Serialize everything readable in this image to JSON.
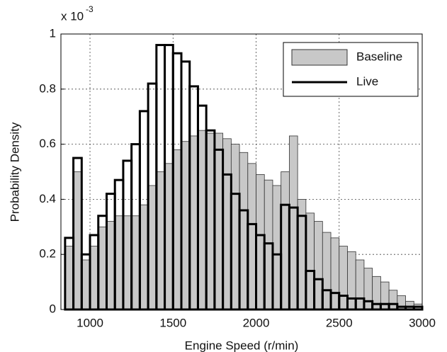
{
  "chart_data": {
    "type": "histogram",
    "x_label": "Engine Speed (r/min)",
    "y_label": "Probability Density",
    "y_multiplier": "x 10",
    "y_multiplier_exponent": "-3",
    "bins": [
      850,
      900,
      950,
      1000,
      1050,
      1100,
      1150,
      1200,
      1250,
      1300,
      1350,
      1400,
      1450,
      1500,
      1550,
      1600,
      1650,
      1700,
      1750,
      1800,
      1850,
      1900,
      1950,
      2000,
      2050,
      2100,
      2150,
      2200,
      2250,
      2300,
      2350,
      2400,
      2450,
      2500,
      2550,
      2600,
      2650,
      2700,
      2750,
      2800,
      2850,
      2900,
      2950,
      3000
    ],
    "series": [
      {
        "name": "Baseline",
        "color": "#c8c8c8",
        "style": "filled",
        "values": [
          0.23,
          0.5,
          0.18,
          0.23,
          0.3,
          0.32,
          0.34,
          0.34,
          0.34,
          0.38,
          0.45,
          0.5,
          0.53,
          0.58,
          0.61,
          0.63,
          0.65,
          0.64,
          0.64,
          0.62,
          0.6,
          0.57,
          0.53,
          0.49,
          0.47,
          0.45,
          0.5,
          0.63,
          0.4,
          0.35,
          0.32,
          0.28,
          0.26,
          0.23,
          0.21,
          0.18,
          0.15,
          0.12,
          0.1,
          0.07,
          0.05,
          0.03,
          0.02
        ]
      },
      {
        "name": "Live",
        "color": "#000000",
        "style": "outline",
        "values": [
          0.26,
          0.55,
          0.2,
          0.27,
          0.34,
          0.42,
          0.47,
          0.54,
          0.6,
          0.72,
          0.82,
          0.96,
          0.96,
          0.93,
          0.9,
          0.81,
          0.74,
          0.65,
          0.58,
          0.49,
          0.42,
          0.36,
          0.31,
          0.27,
          0.24,
          0.2,
          0.38,
          0.37,
          0.34,
          0.14,
          0.11,
          0.07,
          0.06,
          0.05,
          0.04,
          0.04,
          0.03,
          0.02,
          0.02,
          0.02,
          0.01,
          0.01,
          0.01
        ]
      }
    ],
    "xlim": [
      825,
      3000
    ],
    "ylim": [
      0,
      1
    ],
    "xticks": [
      1000,
      1500,
      2000,
      2500,
      3000
    ],
    "yticks": [
      0,
      0.2,
      0.4,
      0.6,
      0.8,
      1
    ],
    "grid": true,
    "legend": "northeast"
  }
}
